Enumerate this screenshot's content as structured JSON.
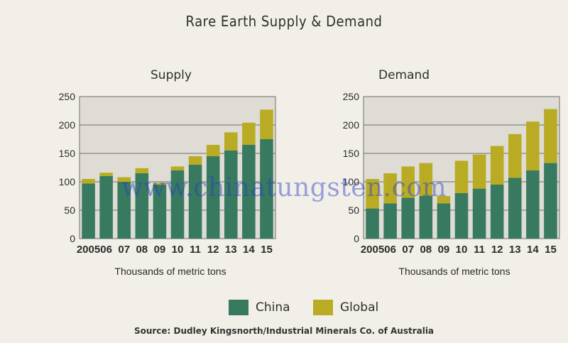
{
  "title": "Rare Earth Supply & Demand",
  "colors": {
    "china": "#387a5f",
    "global": "#b9ac24",
    "background": "#f1efe8"
  },
  "legend": [
    {
      "label": "China",
      "color": "#387a5f"
    },
    {
      "label": "Global",
      "color": "#b9ac24"
    }
  ],
  "source": "Source: Dudley Kingsnorth/Industrial Minerals Co. of Australia",
  "watermark": "www.chinatungsten.com",
  "chart_data": [
    {
      "type": "bar",
      "stacked": true,
      "title": "Supply",
      "categories": [
        "2005",
        "06",
        "07",
        "08",
        "09",
        "10",
        "11",
        "12",
        "13",
        "14",
        "15"
      ],
      "series": [
        {
          "name": "China",
          "values": [
            97,
            110,
            100,
            115,
            95,
            120,
            130,
            145,
            155,
            165,
            175
          ]
        },
        {
          "name": "Global",
          "values": [
            8,
            6,
            8,
            9,
            3,
            7,
            15,
            20,
            32,
            39,
            52
          ]
        }
      ],
      "xlabel": "Thousands of metric tons",
      "ylabel": "",
      "ylim": [
        0,
        250
      ],
      "yticks": [
        0,
        50,
        100,
        150,
        200,
        250
      ],
      "grid": true
    },
    {
      "type": "bar",
      "stacked": true,
      "title": "Demand",
      "categories": [
        "2005",
        "06",
        "07",
        "08",
        "09",
        "10",
        "11",
        "12",
        "13",
        "14",
        "15"
      ],
      "series": [
        {
          "name": "China",
          "values": [
            53,
            62,
            72,
            75,
            62,
            80,
            88,
            95,
            107,
            120,
            133
          ]
        },
        {
          "name": "Global",
          "values": [
            52,
            53,
            55,
            58,
            13,
            57,
            60,
            68,
            77,
            86,
            95
          ]
        }
      ],
      "xlabel": "Thousands of metric tons",
      "ylabel": "",
      "ylim": [
        0,
        250
      ],
      "yticks": [
        0,
        50,
        100,
        150,
        200,
        250
      ],
      "grid": true
    }
  ]
}
